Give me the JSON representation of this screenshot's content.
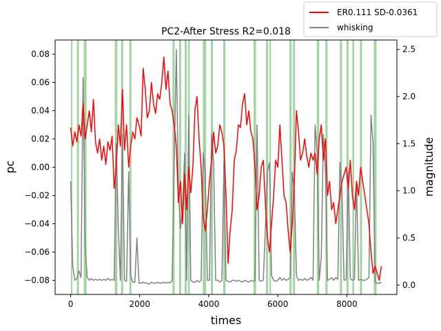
{
  "chart_data": {
    "type": "line",
    "title": "PC2-After Stress R2=0.018",
    "xlabel": "times",
    "ylabel": "pc",
    "ylabel_right": "magnitude",
    "xlim": [
      -450,
      9450
    ],
    "ylim": [
      -0.09,
      0.09
    ],
    "ylim_right": [
      -0.1,
      2.6
    ],
    "xticks": [
      0,
      2000,
      4000,
      6000,
      8000
    ],
    "yticks": [
      -0.08,
      -0.06,
      -0.04,
      -0.02,
      0.0,
      0.02,
      0.04,
      0.06,
      0.08
    ],
    "yticks_right": [
      0.0,
      0.5,
      1.0,
      1.5,
      2.0,
      2.5
    ],
    "xtick_labels": [
      "0",
      "2000",
      "4000",
      "6000",
      "8000"
    ],
    "ytick_labels": [
      "−0.08",
      "−0.06",
      "−0.04",
      "−0.02",
      "0.00",
      "0.02",
      "0.04",
      "0.06",
      "0.08"
    ],
    "ytick_labels_right": [
      "0.0",
      "0.5",
      "1.0",
      "1.5",
      "2.0",
      "2.5"
    ],
    "legend_position": "top-right (outside)",
    "grid": false,
    "shaded_bands": [
      [
        10,
        50
      ],
      [
        180,
        240
      ],
      [
        380,
        460
      ],
      [
        1280,
        1350
      ],
      [
        1460,
        1520
      ],
      [
        1700,
        1760
      ],
      [
        2950,
        3010
      ],
      [
        3140,
        3200
      ],
      [
        3300,
        3360
      ],
      [
        3400,
        3450
      ],
      [
        3830,
        3920
      ],
      [
        4060,
        4120
      ],
      [
        4420,
        4480
      ],
      [
        5300,
        5370
      ],
      [
        5660,
        5720
      ],
      [
        5760,
        5800
      ],
      [
        6340,
        6400
      ],
      [
        6440,
        6500
      ],
      [
        7130,
        7200
      ],
      [
        7380,
        7440
      ],
      [
        7800,
        7860
      ],
      [
        7990,
        8050
      ],
      [
        8160,
        8210
      ],
      [
        8380,
        8440
      ],
      [
        8780,
        8860
      ]
    ],
    "band_color": "#2ca02c",
    "series": [
      {
        "name": "ER0.111 SD-0.0361",
        "axis": "left",
        "color": "#ff0000",
        "x": [
          0,
          60,
          120,
          180,
          240,
          300,
          360,
          420,
          480,
          540,
          600,
          660,
          720,
          780,
          840,
          900,
          960,
          1020,
          1080,
          1140,
          1200,
          1260,
          1320,
          1380,
          1440,
          1500,
          1560,
          1620,
          1680,
          1740,
          1800,
          1860,
          1920,
          1980,
          2040,
          2100,
          2160,
          2220,
          2280,
          2340,
          2400,
          2460,
          2520,
          2580,
          2640,
          2700,
          2760,
          2820,
          2880,
          2940,
          3000,
          3060,
          3120,
          3180,
          3240,
          3300,
          3360,
          3420,
          3480,
          3540,
          3600,
          3660,
          3720,
          3780,
          3840,
          3900,
          3960,
          4020,
          4080,
          4140,
          4200,
          4260,
          4320,
          4380,
          4440,
          4500,
          4560,
          4620,
          4680,
          4740,
          4800,
          4860,
          4920,
          4980,
          5040,
          5100,
          5160,
          5220,
          5280,
          5340,
          5400,
          5460,
          5520,
          5580,
          5640,
          5700,
          5760,
          5820,
          5880,
          5940,
          6000,
          6060,
          6120,
          6180,
          6240,
          6300,
          6360,
          6420,
          6480,
          6540,
          6600,
          6660,
          6720,
          6780,
          6840,
          6900,
          6960,
          7020,
          7080,
          7140,
          7200,
          7260,
          7320,
          7380,
          7440,
          7500,
          7560,
          7620,
          7680,
          7740,
          7800,
          7860,
          7920,
          7980,
          8040,
          8100,
          8160,
          8220,
          8280,
          8340,
          8400,
          8460,
          8520,
          8580,
          8640,
          8700,
          8760,
          8820,
          8880,
          8940,
          9000
        ],
        "y": [
          0.028,
          0.015,
          0.025,
          0.018,
          0.03,
          0.022,
          0.045,
          0.02,
          0.03,
          0.04,
          0.025,
          0.048,
          0.018,
          0.01,
          0.02,
          0.005,
          0.015,
          0.002,
          0.018,
          0.012,
          0.022,
          -0.015,
          0.0,
          0.03,
          0.015,
          0.055,
          0.012,
          0.03,
          0.0,
          0.015,
          0.025,
          0.02,
          0.035,
          0.03,
          0.022,
          0.07,
          0.055,
          0.035,
          0.04,
          0.06,
          0.045,
          0.038,
          0.052,
          0.048,
          0.06,
          0.078,
          0.055,
          0.068,
          0.045,
          0.04,
          0.03,
          0.015,
          -0.025,
          -0.01,
          -0.04,
          -0.005,
          -0.03,
          0.0,
          -0.018,
          0.0,
          0.04,
          0.05,
          0.02,
          0.0,
          -0.035,
          -0.045,
          -0.03,
          -0.01,
          0.005,
          0.025,
          0.01,
          0.015,
          0.03,
          0.025,
          0.015,
          -0.02,
          -0.068,
          -0.045,
          -0.03,
          0.005,
          0.012,
          0.03,
          0.028,
          0.045,
          0.052,
          0.03,
          0.04,
          0.025,
          0.02,
          0.0,
          -0.03,
          -0.02,
          0.0,
          0.005,
          -0.025,
          -0.05,
          -0.06,
          -0.04,
          -0.02,
          0.005,
          0.0,
          0.03,
          0.005,
          -0.02,
          -0.025,
          -0.045,
          -0.06,
          -0.04,
          -0.01,
          0.04,
          0.025,
          0.005,
          0.01,
          0.02,
          0.008,
          0.0,
          0.01,
          0.005,
          0.01,
          -0.005,
          0.02,
          0.03,
          0.005,
          0.02,
          -0.02,
          -0.01,
          -0.03,
          -0.025,
          -0.04,
          -0.03,
          -0.02,
          -0.01,
          -0.005,
          0.0,
          -0.015,
          0.005,
          -0.02,
          -0.03,
          -0.01,
          -0.02,
          0.0,
          -0.01,
          -0.02,
          -0.03,
          -0.04,
          -0.06,
          -0.075,
          -0.07,
          -0.075,
          -0.08,
          -0.07
        ]
      },
      {
        "name": "whisking",
        "axis": "right",
        "color": "#808080",
        "x": [
          0,
          60,
          120,
          180,
          240,
          300,
          360,
          420,
          480,
          540,
          600,
          660,
          720,
          780,
          840,
          900,
          960,
          1020,
          1080,
          1140,
          1200,
          1260,
          1320,
          1380,
          1440,
          1500,
          1560,
          1620,
          1680,
          1740,
          1800,
          1860,
          1920,
          1980,
          2040,
          2100,
          2160,
          2220,
          2280,
          2340,
          2400,
          2460,
          2520,
          2580,
          2640,
          2700,
          2760,
          2820,
          2880,
          2940,
          3000,
          3060,
          3120,
          3180,
          3240,
          3300,
          3360,
          3420,
          3480,
          3540,
          3600,
          3660,
          3720,
          3780,
          3840,
          3900,
          3960,
          4020,
          4080,
          4140,
          4200,
          4260,
          4320,
          4380,
          4440,
          4500,
          4560,
          4620,
          4680,
          4740,
          4800,
          4860,
          4920,
          4980,
          5040,
          5100,
          5160,
          5220,
          5280,
          5340,
          5400,
          5460,
          5520,
          5580,
          5640,
          5700,
          5760,
          5820,
          5880,
          5940,
          6000,
          6060,
          6120,
          6180,
          6240,
          6300,
          6360,
          6420,
          6480,
          6540,
          6600,
          6660,
          6720,
          6780,
          6840,
          6900,
          6960,
          7020,
          7080,
          7140,
          7200,
          7260,
          7320,
          7380,
          7440,
          7500,
          7560,
          7620,
          7680,
          7740,
          7800,
          7860,
          7920,
          7980,
          8040,
          8100,
          8160,
          8220,
          8280,
          8340,
          8400,
          8460,
          8520,
          8580,
          8640,
          8700,
          8760,
          8820,
          8880,
          8940,
          9000
        ],
        "y": [
          1.1,
          0.2,
          0.05,
          0.07,
          0.15,
          0.08,
          2.2,
          0.4,
          0.08,
          0.05,
          0.07,
          0.05,
          0.06,
          0.05,
          0.06,
          0.05,
          0.06,
          0.05,
          0.07,
          0.05,
          0.06,
          0.05,
          1.5,
          0.6,
          0.05,
          1.6,
          0.05,
          0.04,
          1.2,
          0.1,
          0.03,
          0.03,
          0.5,
          0.02,
          0.02,
          0.03,
          0.02,
          0.02,
          0.01,
          0.03,
          0.02,
          0.02,
          0.03,
          0.02,
          0.02,
          0.03,
          0.02,
          0.03,
          0.02,
          0.05,
          1.3,
          2.5,
          1.0,
          0.6,
          0.8,
          1.4,
          0.05,
          1.8,
          0.05,
          0.03,
          0.03,
          0.05,
          0.03,
          0.05,
          1.4,
          1.2,
          0.05,
          0.05,
          1.6,
          1.3,
          0.05,
          0.05,
          0.03,
          0.05,
          1.3,
          0.05,
          0.04,
          0.03,
          0.05,
          0.05,
          0.04,
          0.05,
          0.04,
          0.03,
          0.05,
          0.04,
          0.03,
          0.05,
          0.04,
          0.05,
          1.7,
          0.05,
          0.04,
          0.05,
          0.6,
          1.2,
          1.3,
          0.1,
          0.05,
          0.04,
          0.05,
          0.08,
          0.05,
          0.07,
          0.05,
          0.06,
          0.08,
          1.2,
          1.0,
          0.1,
          0.05,
          0.06,
          0.05,
          0.07,
          0.05,
          0.06,
          0.08,
          0.05,
          1.7,
          1.4,
          0.05,
          0.3,
          1.6,
          1.2,
          0.05,
          0.06,
          0.08,
          0.05,
          0.08,
          0.06,
          1.3,
          1.0,
          0.05,
          0.06,
          1.2,
          0.07,
          0.05,
          0.06,
          1.1,
          0.05,
          0.06,
          0.05,
          0.05,
          0.06,
          0.08,
          1.8,
          1.5,
          0.03,
          0.02,
          0.02,
          0.03
        ]
      }
    ]
  }
}
